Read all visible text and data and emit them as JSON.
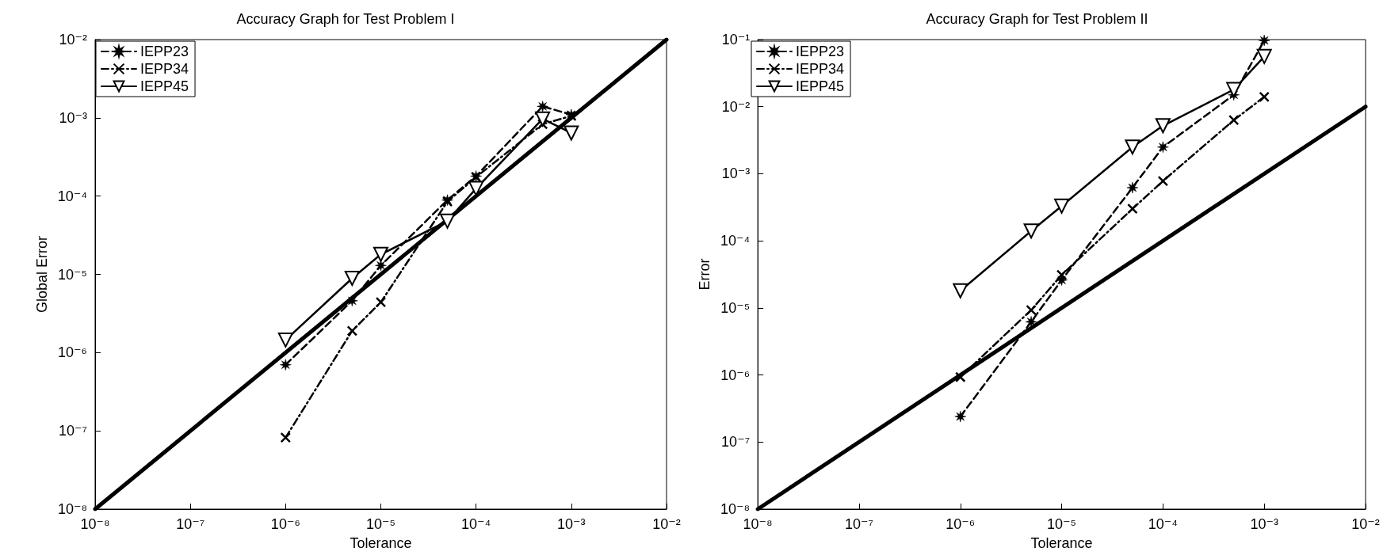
{
  "chart_data": [
    {
      "type": "line",
      "title": "Accuracy Graph for Test Problem I",
      "xlabel": "Tolerance",
      "ylabel": "Global Error",
      "log": "xy",
      "grid": false,
      "legend": "top left",
      "xlim": [
        1e-08,
        0.01
      ],
      "ylim": [
        1e-08,
        0.01
      ],
      "xticks": [
        {
          "value": 1e-08,
          "label": "10⁻⁸"
        },
        {
          "value": 1e-07,
          "label": "10⁻⁷"
        },
        {
          "value": 1e-06,
          "label": "10⁻⁶"
        },
        {
          "value": 1e-05,
          "label": "10⁻⁵"
        },
        {
          "value": 0.0001,
          "label": "10⁻⁴"
        },
        {
          "value": 0.001,
          "label": "10⁻³"
        },
        {
          "value": 0.01,
          "label": "10⁻²"
        }
      ],
      "yticks": [
        {
          "value": 1e-08,
          "label": "10⁻⁸"
        },
        {
          "value": 1e-07,
          "label": "10⁻⁷"
        },
        {
          "value": 1e-06,
          "label": "10⁻⁶"
        },
        {
          "value": 1e-05,
          "label": "10⁻⁵"
        },
        {
          "value": 0.0001,
          "label": "10⁻⁴"
        },
        {
          "value": 0.001,
          "label": "10⁻³"
        },
        {
          "value": 0.01,
          "label": "10⁻²"
        }
      ],
      "series": [
        {
          "name": "IEPP23",
          "color": "#000000",
          "marker": "star",
          "line_style": "dashed",
          "x": [
            1e-06,
            5e-06,
            1e-05,
            5e-05,
            0.0001,
            0.0005,
            0.001
          ],
          "values": [
            7e-07,
            4.6e-06,
            1.3e-05,
            8.9e-05,
            0.00018,
            0.0014,
            0.0011
          ]
        },
        {
          "name": "IEPP34",
          "color": "#000000",
          "marker": "cross",
          "line_style": "dotted",
          "x": [
            1e-06,
            5e-06,
            1e-05,
            5e-05,
            0.0001,
            0.0005,
            0.001
          ],
          "values": [
            8.2e-08,
            1.9e-06,
            4.4e-06,
            8.5e-05,
            0.000175,
            0.00083,
            0.00106
          ]
        },
        {
          "name": "IEPP45",
          "color": "#000000",
          "marker": "triangle",
          "line_style": "solid",
          "x": [
            1e-06,
            5e-06,
            1e-05,
            5e-05,
            0.0001,
            0.0005,
            0.001
          ],
          "values": [
            1.45e-06,
            8.9e-06,
            1.8e-05,
            4.8e-05,
            0.000125,
            0.00097,
            0.00064
          ]
        },
        {
          "color": "#000000",
          "marker": "none",
          "line_style": "solid",
          "x": [
            1e-08,
            0.01
          ],
          "values": [
            1e-08,
            0.01
          ]
        }
      ]
    },
    {
      "type": "line",
      "title": "Accuracy Graph for Test Problem II",
      "xlabel": "Tolerance",
      "ylabel": "Error",
      "log": "xy",
      "grid": false,
      "legend": "top left",
      "xlim": [
        1e-08,
        0.01
      ],
      "ylim": [
        1e-08,
        0.1
      ],
      "xticks": [
        {
          "value": 1e-08,
          "label": "10⁻⁸"
        },
        {
          "value": 1e-07,
          "label": "10⁻⁷"
        },
        {
          "value": 1e-06,
          "label": "10⁻⁶"
        },
        {
          "value": 1e-05,
          "label": "10⁻⁵"
        },
        {
          "value": 0.0001,
          "label": "10⁻⁴"
        },
        {
          "value": 0.001,
          "label": "10⁻³"
        },
        {
          "value": 0.01,
          "label": "10⁻²"
        }
      ],
      "yticks": [
        {
          "value": 1e-08,
          "label": "10⁻⁸"
        },
        {
          "value": 1e-07,
          "label": "10⁻⁷"
        },
        {
          "value": 1e-06,
          "label": "10⁻⁶"
        },
        {
          "value": 1e-05,
          "label": "10⁻⁵"
        },
        {
          "value": 0.0001,
          "label": "10⁻⁴"
        },
        {
          "value": 0.001,
          "label": "10⁻³"
        },
        {
          "value": 0.01,
          "label": "10⁻²"
        },
        {
          "value": 0.1,
          "label": "10⁻¹"
        }
      ],
      "series": [
        {
          "name": "IEPP23",
          "color": "#000000",
          "marker": "star",
          "line_style": "dashed",
          "x": [
            1e-06,
            5e-06,
            1e-05,
            5e-05,
            0.0001,
            0.0005,
            0.001
          ],
          "values": [
            2.4e-07,
            6.2e-06,
            2.6e-05,
            0.00062,
            0.0025,
            0.015,
            0.097
          ]
        },
        {
          "name": "IEPP34",
          "color": "#000000",
          "marker": "cross",
          "line_style": "dotted",
          "x": [
            1e-06,
            5e-06,
            1e-05,
            5e-05,
            0.0001,
            0.0005,
            0.001
          ],
          "values": [
            9.3e-07,
            9.3e-06,
            3.1e-05,
            0.0003,
            0.00078,
            0.0063,
            0.014
          ]
        },
        {
          "name": "IEPP45",
          "color": "#000000",
          "marker": "triangle",
          "line_style": "solid",
          "x": [
            1e-06,
            5e-06,
            1e-05,
            5e-05,
            0.0001,
            0.0005,
            0.001
          ],
          "values": [
            1.8e-05,
            0.00014,
            0.00033,
            0.0025,
            0.0052,
            0.018,
            0.056
          ]
        },
        {
          "color": "#000000",
          "marker": "none",
          "line_style": "solid",
          "x": [
            1e-08,
            0.01
          ],
          "values": [
            1e-08,
            0.01
          ]
        }
      ]
    }
  ]
}
